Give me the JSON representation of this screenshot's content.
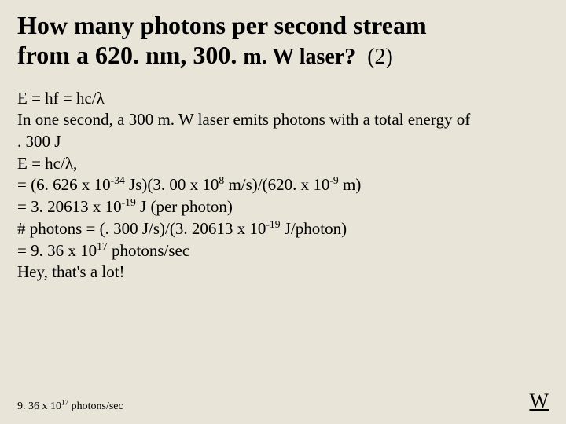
{
  "slide": {
    "background_color": "#e8e4d8",
    "text_color": "#000000",
    "title_line1": "How many photons per second stream",
    "title_line2_a": "from a 620. nm, 300. ",
    "title_line2_b": "m. W laser?",
    "marks": "(2)",
    "title_fontsize_main": 32,
    "title_fontsize_sub": 28,
    "body_fontsize": 21
  },
  "body": {
    "l1a": "E = hf = hc/",
    "l1b": "λ",
    "l2": "In one second, a 300 m. W laser emits photons with a total energy of",
    "l3": ". 300 J",
    "l4a": "E = hc/",
    "l4b": "λ",
    "l4c": ",",
    "l5a": "= (6. 626 x 10",
    "l5b": "-34",
    "l5c": " Js)(3. 00 x 10",
    "l5d": "8",
    "l5e": " m/s)/(620. x 10",
    "l5f": "-9",
    "l5g": " m)",
    "l6a": "= 3. 20613 x 10",
    "l6b": "-19",
    "l6c": " J (per photon)",
    "l7a": " # photons = (. 300 J/s)/(3. 20613 x 10",
    "l7b": "-19",
    "l7c": " J/photon)",
    "l8a": "= 9. 36 x 10",
    "l8b": "17",
    "l8c": " photons/sec",
    "l9": "Hey, that's a lot!"
  },
  "footer": {
    "answer_a": "9. 36 x 10",
    "answer_b": "17",
    "answer_c": " photons/sec",
    "nav": "W",
    "answer_fontsize": 14,
    "nav_fontsize": 26
  }
}
